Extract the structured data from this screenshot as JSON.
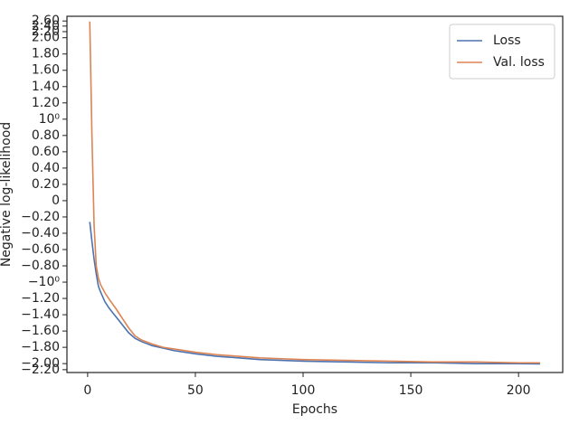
{
  "chart_data": {
    "type": "line",
    "xlabel": "Epochs",
    "ylabel": "Negative log-likelihood",
    "yscale": "symlog",
    "linthresh": 2,
    "x": [
      1,
      2,
      3,
      4,
      5,
      6,
      8,
      10,
      13,
      16,
      19,
      22,
      25,
      30,
      35,
      40,
      50,
      60,
      70,
      80,
      90,
      100,
      120,
      140,
      160,
      180,
      200,
      210
    ],
    "series": [
      {
        "name": "Loss",
        "color": "#4c72b0",
        "values": [
          -0.26,
          -0.5,
          -0.72,
          -0.9,
          -1.05,
          -1.12,
          -1.24,
          -1.32,
          -1.42,
          -1.52,
          -1.62,
          -1.69,
          -1.73,
          -1.78,
          -1.81,
          -1.84,
          -1.88,
          -1.91,
          -1.93,
          -1.95,
          -1.96,
          -1.97,
          -1.98,
          -1.99,
          -1.99,
          -2.0,
          -2.0,
          -2.01
        ]
      },
      {
        "name": "Val. loss",
        "color": "#dd8452",
        "values": [
          2.58,
          0.8,
          -0.3,
          -0.8,
          -0.95,
          -1.03,
          -1.13,
          -1.21,
          -1.32,
          -1.44,
          -1.56,
          -1.66,
          -1.71,
          -1.76,
          -1.8,
          -1.82,
          -1.86,
          -1.89,
          -1.91,
          -1.93,
          -1.94,
          -1.95,
          -1.96,
          -1.97,
          -1.98,
          -1.98,
          -1.99,
          -1.99
        ]
      }
    ],
    "xlim": [
      -9.6,
      220.5
    ],
    "xticks": [
      0,
      50,
      100,
      150,
      200
    ],
    "ylim": [
      -2.3,
      2.8
    ],
    "yticks": [
      {
        "value": -2.2,
        "label": "−2.20"
      },
      {
        "value": -2.0,
        "label": "−2.00"
      },
      {
        "value": -1.8,
        "label": "−1.80"
      },
      {
        "value": -1.6,
        "label": "−1.60"
      },
      {
        "value": -1.4,
        "label": "−1.40"
      },
      {
        "value": -1.2,
        "label": "−1.20"
      },
      {
        "value": -1,
        "label": "−10⁰"
      },
      {
        "value": -0.8,
        "label": "−0.80"
      },
      {
        "value": -0.6,
        "label": "−0.60"
      },
      {
        "value": -0.4,
        "label": "−0.40"
      },
      {
        "value": -0.2,
        "label": "−0.20"
      },
      0,
      {
        "value": 0.2,
        "label": "0.20"
      },
      {
        "value": 0.4,
        "label": "0.40"
      },
      {
        "value": 0.6,
        "label": "0.60"
      },
      {
        "value": 0.8,
        "label": "0.80"
      },
      {
        "value": 1,
        "label": "10⁰"
      },
      {
        "value": 1.2,
        "label": "1.20"
      },
      {
        "value": 1.4,
        "label": "1.40"
      },
      {
        "value": 1.6,
        "label": "1.60"
      },
      {
        "value": 1.8,
        "label": "1.80"
      },
      {
        "value": 2.0,
        "label": "2.00"
      },
      {
        "value": 2.2,
        "label": "2.20"
      },
      {
        "value": 2.4,
        "label": "2.40"
      },
      {
        "value": 2.6,
        "label": "2.60"
      }
    ],
    "legend": "upper right"
  }
}
